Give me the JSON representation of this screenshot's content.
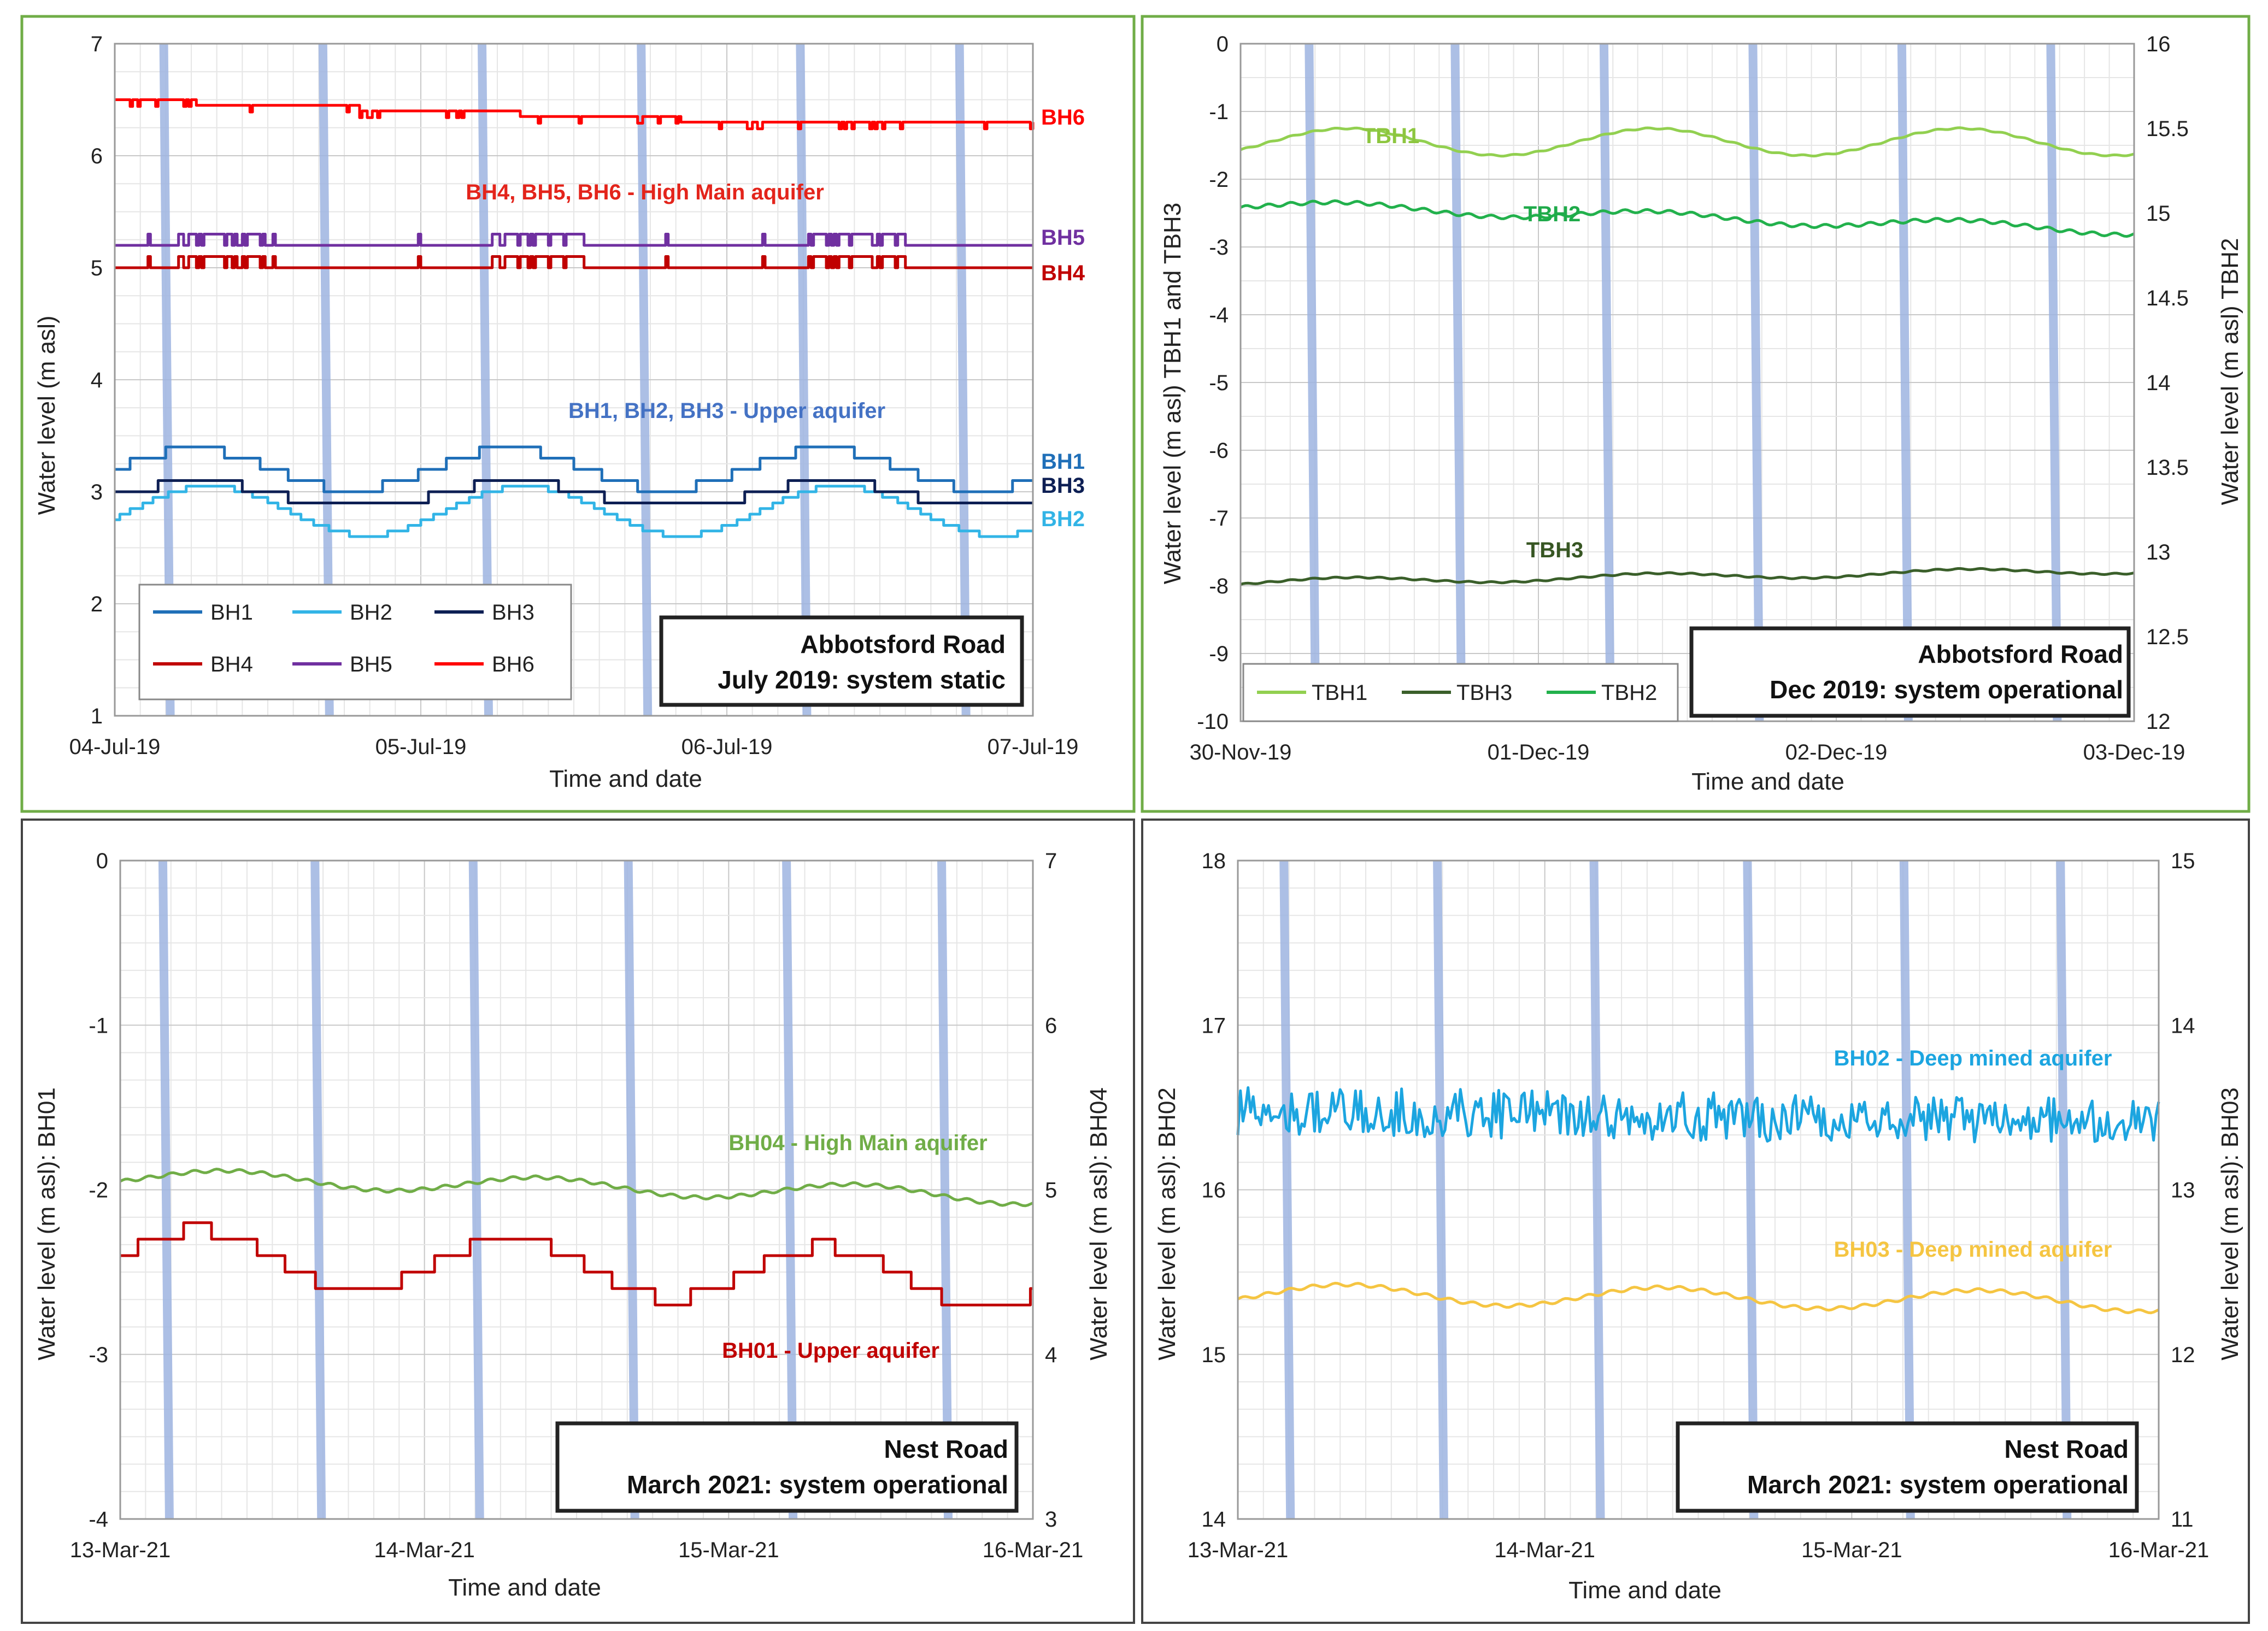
{
  "chart_data": [
    {
      "type": "line",
      "id": "p1",
      "location": "Abbotsford Road",
      "period_label": "July 2019: system static",
      "xlabel": "Time and date",
      "ylabel": "Water level (m asl)",
      "x_ticks": [
        "04-Jul-19",
        "05-Jul-19",
        "06-Jul-19",
        "07-Jul-19"
      ],
      "xlim_days": [
        0,
        3
      ],
      "ylim": [
        1,
        7
      ],
      "y_ticks": [
        "1",
        "2",
        "3",
        "4",
        "5",
        "6",
        "7"
      ],
      "annotations": [
        {
          "text": "BH4, BH5, BH6 - High Main aquifer",
          "color": "#e3241b"
        },
        {
          "text": "BH1, BH2, BH3 - Upper aquifer",
          "color": "#4472c4"
        }
      ],
      "bands_days": [
        0.16,
        0.68,
        1.2,
        1.72,
        2.24,
        2.76
      ],
      "legend": [
        "BH1",
        "BH2",
        "BH3",
        "BH4",
        "BH5",
        "BH6"
      ],
      "series": [
        {
          "name": "BH1",
          "color": "#1f6fb8",
          "kind": "tidal",
          "base": 3.2,
          "amp": 0.18,
          "step": 0.1,
          "end_label": "BH1"
        },
        {
          "name": "BH2",
          "color": "#32b4e6",
          "kind": "tidal",
          "base": 2.83,
          "amp": 0.22,
          "step": 0.05,
          "phase": 0.05,
          "end_label": "BH2"
        },
        {
          "name": "BH3",
          "color": "#0d1f54",
          "kind": "tidal",
          "base": 2.97,
          "amp": 0.12,
          "step": 0.1,
          "phase": 0.02,
          "end_label": "BH3"
        },
        {
          "name": "BH4",
          "color": "#c00000",
          "kind": "spiky",
          "base": 5.0,
          "up": 0.1,
          "end_label": "BH4"
        },
        {
          "name": "BH5",
          "color": "#7030a0",
          "kind": "spiky",
          "base": 5.2,
          "up": 0.1,
          "end_label": "BH5"
        },
        {
          "name": "BH6",
          "color": "#ff0000",
          "kind": "decline",
          "base": 6.5,
          "drop": 0.18,
          "end_label": "BH6"
        }
      ]
    },
    {
      "type": "line",
      "id": "p2",
      "location": "Abbotsford Road",
      "period_label": "Dec 2019: system operational",
      "xlabel": "Time and date",
      "ylabel": "Water level (m asl) TBH1 and TBH3",
      "ylabel_right": "Water level (m asl) TBH2",
      "x_ticks": [
        "30-Nov-19",
        "01-Dec-19",
        "02-Dec-19",
        "03-Dec-19"
      ],
      "xlim_days": [
        0,
        3
      ],
      "ylim": [
        -10,
        0
      ],
      "y_ticks": [
        "-10",
        "-9",
        "-8",
        "-7",
        "-6",
        "-5",
        "-4",
        "-3",
        "-2",
        "-1",
        "0"
      ],
      "ylim_right": [
        12,
        16
      ],
      "y_ticks_right": [
        "12",
        "12.5",
        "13",
        "13.5",
        "14",
        "14.5",
        "15",
        "15.5",
        "16"
      ],
      "annotations": [
        {
          "text": "TBH1",
          "color": "#8dc63f"
        },
        {
          "text": "TBH2",
          "color": "#1faa4a"
        },
        {
          "text": "TBH3",
          "color": "#375623"
        }
      ],
      "bands_days": [
        0.23,
        0.72,
        1.22,
        1.72,
        2.22,
        2.72
      ],
      "legend": [
        "TBH1",
        "TBH3",
        "TBH2"
      ],
      "series": [
        {
          "name": "TBH1",
          "color": "#92d050",
          "kind": "smooth",
          "axis": "left",
          "base": -1.45,
          "amp": 0.2,
          "trend": 0.0
        },
        {
          "name": "TBH2",
          "color": "#22b14c",
          "kind": "smooth",
          "axis": "right",
          "base": 15.05,
          "amp": 0.03,
          "trend": -0.15
        },
        {
          "name": "TBH3",
          "color": "#3a5f2a",
          "kind": "smooth",
          "axis": "left",
          "base": -7.95,
          "amp": 0.05,
          "trend": 0.18
        }
      ]
    },
    {
      "type": "line",
      "id": "p3",
      "location": "Nest Road",
      "period_label": "March 2021: system operational",
      "xlabel": "Time and date",
      "ylabel": "Water level (m asl): BH01",
      "ylabel_right": "Water level (m asl): BH04",
      "x_ticks": [
        "13-Mar-21",
        "14-Mar-21",
        "15-Mar-21",
        "16-Mar-21"
      ],
      "xlim_days": [
        0,
        3
      ],
      "ylim": [
        -4,
        0
      ],
      "y_ticks": [
        "-4",
        "-3",
        "-2",
        "-1",
        "0"
      ],
      "ylim_right": [
        3,
        7
      ],
      "y_ticks_right": [
        "3",
        "4",
        "5",
        "6",
        "7"
      ],
      "annotations": [
        {
          "text": "BH04 - High Main aquifer",
          "color": "#70ad47"
        },
        {
          "text": "BH01 - Upper aquifer",
          "color": "#c00000"
        }
      ],
      "bands_days": [
        0.14,
        0.64,
        1.16,
        1.67,
        2.19,
        2.7
      ],
      "series": [
        {
          "name": "BH04",
          "color": "#70ad47",
          "kind": "smooth",
          "axis": "right",
          "base": 5.08,
          "amp": 0.05,
          "trend": -0.12
        },
        {
          "name": "BH01",
          "color": "#c00000",
          "kind": "tidal",
          "axis": "left",
          "base": -2.4,
          "amp": 0.17,
          "step": 0.1,
          "trend": -0.15
        }
      ]
    },
    {
      "type": "line",
      "id": "p4",
      "location": "Nest Road",
      "period_label": "March 2021: system operational",
      "xlabel": "Time and date",
      "ylabel": "Water level (m asl): BH02",
      "ylabel_right": "Water level (m asl): BH03",
      "x_ticks": [
        "13-Mar-21",
        "14-Mar-21",
        "15-Mar-21",
        "16-Mar-21"
      ],
      "xlim_days": [
        0,
        3
      ],
      "ylim": [
        14,
        18
      ],
      "y_ticks": [
        "14",
        "15",
        "16",
        "17",
        "18"
      ],
      "ylim_right": [
        11,
        15
      ],
      "y_ticks_right": [
        "11",
        "12",
        "13",
        "14",
        "15"
      ],
      "annotations": [
        {
          "text": "BH02 - Deep mined aquifer",
          "color": "#1ca5e0"
        },
        {
          "text": "BH03 - Deep mined aquifer",
          "color": "#f5c542"
        }
      ],
      "bands_days": [
        0.15,
        0.65,
        1.16,
        1.66,
        2.17,
        2.68
      ],
      "series": [
        {
          "name": "BH02",
          "color": "#1ca5e0",
          "kind": "noisy",
          "axis": "left",
          "base": 16.47,
          "trend": -0.07
        },
        {
          "name": "BH03",
          "color": "#f5c542",
          "kind": "smooth",
          "axis": "right",
          "base": 12.37,
          "amp": 0.06,
          "trend": -0.05
        }
      ]
    }
  ]
}
